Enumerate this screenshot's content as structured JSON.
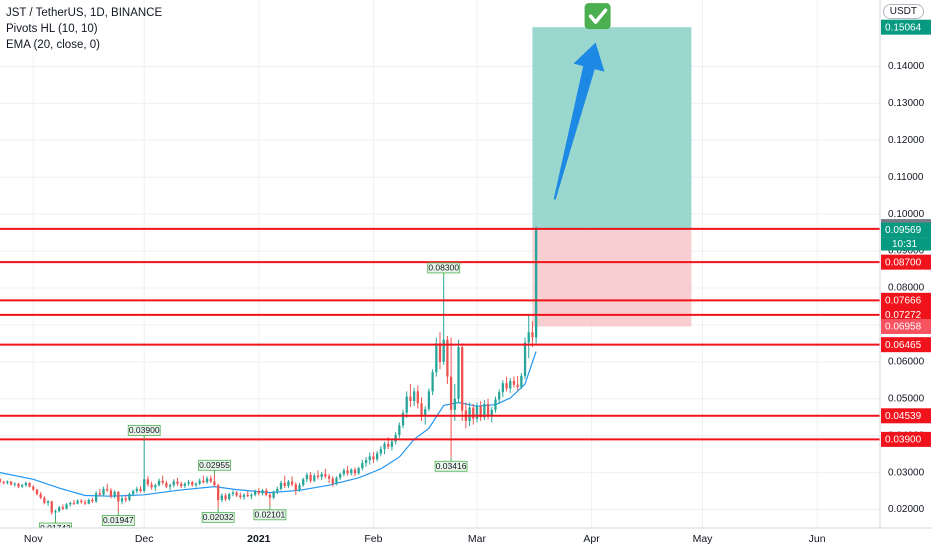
{
  "header": {
    "symbol_line": "JST / TetherUS, 1D, BINANCE",
    "indicator_1": "Pivots HL (10, 10)",
    "indicator_2": "EMA (20, close, 0)"
  },
  "currency_button": "USDT",
  "countdown": "10:31",
  "colors": {
    "up": "#26a69a",
    "down": "#ef5350",
    "ema": "#2196f3",
    "level_line": "#f0131b",
    "target_zone": "#8fd3c9",
    "stop_zone": "#f7c9cb",
    "arrow": "#1e88e5",
    "check": "#4caf50",
    "grid": "#eef0f3"
  },
  "chart_data": {
    "type": "candlestick",
    "x_ticks": [
      "Nov",
      "Dec",
      "2021",
      "Feb",
      "Mar",
      "Apr",
      "May",
      "Jun"
    ],
    "y_ticks": [
      0.02,
      0.03,
      0.04,
      0.05,
      0.06,
      0.07,
      0.08,
      0.09,
      0.1,
      0.11,
      0.12,
      0.13,
      0.14
    ],
    "y_tick_labels": [
      "0.02000",
      "0.03000",
      "0.04000",
      "0.05000",
      "0.06000",
      "0.07000",
      "0.08000",
      "0.09000",
      "0.10000",
      "0.11000",
      "0.12000",
      "0.13000",
      "0.14000"
    ],
    "y_range": [
      0.015,
      0.158
    ],
    "x_range": [
      "2020-10-23",
      "2021-06-18"
    ],
    "grid": true,
    "horizontal_levels": [
      {
        "value": 0.096,
        "label": "0.09600"
      },
      {
        "value": 0.087,
        "label": "0.08700"
      },
      {
        "value": 0.07666,
        "label": "0.07666"
      },
      {
        "value": 0.07272,
        "label": "0.07272"
      },
      {
        "value": 0.06465,
        "label": "0.06465"
      },
      {
        "value": 0.04539,
        "label": "0.04539"
      },
      {
        "value": 0.039,
        "label": "0.03900"
      }
    ],
    "price_badges": [
      {
        "value": 0.15064,
        "label": "0.15064",
        "color": "#089981"
      },
      {
        "value": 0.09664,
        "label": "0.09664",
        "color": "#787b86"
      },
      {
        "value": 0.09569,
        "label": "0.09569",
        "color": "#089981"
      },
      {
        "value": 0.06958,
        "label": "0.06958",
        "color": "#f7525f"
      }
    ],
    "long_position": {
      "entry": 0.09569,
      "target": 0.15064,
      "stop": 0.06958,
      "start": "2021-03-16",
      "end": "2021-04-28"
    },
    "pivots": [
      {
        "date": "2020-11-07",
        "value": 0.01743,
        "label": "0.01743",
        "kind": "low"
      },
      {
        "date": "2020-11-24",
        "value": 0.01947,
        "label": "0.01947",
        "kind": "low"
      },
      {
        "date": "2020-12-01",
        "value": 0.039,
        "label": "0.03900",
        "kind": "high"
      },
      {
        "date": "2020-12-20",
        "value": 0.02955,
        "label": "0.02955",
        "kind": "high"
      },
      {
        "date": "2020-12-21",
        "value": 0.02032,
        "label": "0.02032",
        "kind": "low"
      },
      {
        "date": "2021-01-04",
        "value": 0.02101,
        "label": "0.02101",
        "kind": "low"
      },
      {
        "date": "2021-02-20",
        "value": 0.083,
        "label": "0.08300",
        "kind": "high"
      },
      {
        "date": "2021-02-22",
        "value": 0.03416,
        "label": "0.03416",
        "kind": "low"
      }
    ],
    "candles": [
      [
        "2020-10-23",
        0.0282,
        0.0285,
        0.0272,
        0.0275
      ],
      [
        "2020-10-24",
        0.0275,
        0.0278,
        0.0268,
        0.0272
      ],
      [
        "2020-10-25",
        0.0272,
        0.0279,
        0.0268,
        0.0276
      ],
      [
        "2020-10-26",
        0.0276,
        0.0277,
        0.0265,
        0.0268
      ],
      [
        "2020-10-27",
        0.0268,
        0.0274,
        0.0262,
        0.027
      ],
      [
        "2020-10-28",
        0.027,
        0.0272,
        0.0258,
        0.0262
      ],
      [
        "2020-10-29",
        0.0262,
        0.027,
        0.0258,
        0.0266
      ],
      [
        "2020-10-30",
        0.0266,
        0.0276,
        0.0262,
        0.0272
      ],
      [
        "2020-10-31",
        0.0272,
        0.0274,
        0.026,
        0.0262
      ],
      [
        "2020-11-01",
        0.0262,
        0.0266,
        0.025,
        0.0254
      ],
      [
        "2020-11-02",
        0.0254,
        0.0256,
        0.0238,
        0.0242
      ],
      [
        "2020-11-03",
        0.0242,
        0.0248,
        0.0228,
        0.0232
      ],
      [
        "2020-11-04",
        0.0232,
        0.0236,
        0.0214,
        0.0218
      ],
      [
        "2020-11-05",
        0.0218,
        0.0226,
        0.021,
        0.0222
      ],
      [
        "2020-11-06",
        0.0222,
        0.0224,
        0.0186,
        0.0192
      ],
      [
        "2020-11-07",
        0.0192,
        0.02,
        0.01743,
        0.0196
      ],
      [
        "2020-11-08",
        0.0196,
        0.021,
        0.0192,
        0.0206
      ],
      [
        "2020-11-09",
        0.0206,
        0.0214,
        0.0198,
        0.0202
      ],
      [
        "2020-11-10",
        0.0202,
        0.0218,
        0.02,
        0.0214
      ],
      [
        "2020-11-11",
        0.0214,
        0.0222,
        0.0208,
        0.0218
      ],
      [
        "2020-11-12",
        0.0218,
        0.0226,
        0.0212,
        0.0216
      ],
      [
        "2020-11-13",
        0.0216,
        0.0228,
        0.0214,
        0.0224
      ],
      [
        "2020-11-14",
        0.0224,
        0.0228,
        0.0216,
        0.022
      ],
      [
        "2020-11-15",
        0.022,
        0.0226,
        0.0212,
        0.0216
      ],
      [
        "2020-11-16",
        0.0216,
        0.023,
        0.0214,
        0.0226
      ],
      [
        "2020-11-17",
        0.0226,
        0.0232,
        0.0218,
        0.0222
      ],
      [
        "2020-11-18",
        0.0222,
        0.025,
        0.0218,
        0.0244
      ],
      [
        "2020-11-19",
        0.0244,
        0.0256,
        0.0236,
        0.024
      ],
      [
        "2020-11-20",
        0.024,
        0.0262,
        0.0236,
        0.0256
      ],
      [
        "2020-11-21",
        0.0256,
        0.027,
        0.0248,
        0.0252
      ],
      [
        "2020-11-22",
        0.0252,
        0.0258,
        0.023,
        0.0236
      ],
      [
        "2020-11-23",
        0.0236,
        0.0252,
        0.023,
        0.0248
      ],
      [
        "2020-11-24",
        0.0248,
        0.025,
        0.01947,
        0.0222
      ],
      [
        "2020-11-25",
        0.0222,
        0.0236,
        0.0214,
        0.023
      ],
      [
        "2020-11-26",
        0.023,
        0.024,
        0.022,
        0.0226
      ],
      [
        "2020-11-27",
        0.0226,
        0.0246,
        0.0222,
        0.0242
      ],
      [
        "2020-11-28",
        0.0242,
        0.0254,
        0.0236,
        0.025
      ],
      [
        "2020-11-29",
        0.025,
        0.0262,
        0.0244,
        0.0256
      ],
      [
        "2020-11-30",
        0.0256,
        0.0264,
        0.0246,
        0.025
      ],
      [
        "2020-12-01",
        0.025,
        0.039,
        0.0246,
        0.0282
      ],
      [
        "2020-12-02",
        0.0282,
        0.029,
        0.0262,
        0.0268
      ],
      [
        "2020-12-03",
        0.0268,
        0.0276,
        0.0254,
        0.026
      ],
      [
        "2020-12-04",
        0.026,
        0.027,
        0.025,
        0.0266
      ],
      [
        "2020-12-05",
        0.0266,
        0.0284,
        0.0262,
        0.0278
      ],
      [
        "2020-12-06",
        0.0278,
        0.0292,
        0.0268,
        0.0272
      ],
      [
        "2020-12-07",
        0.0272,
        0.0278,
        0.0258,
        0.0262
      ],
      [
        "2020-12-08",
        0.0262,
        0.027,
        0.0252,
        0.0266
      ],
      [
        "2020-12-09",
        0.0266,
        0.0282,
        0.026,
        0.0276
      ],
      [
        "2020-12-10",
        0.0276,
        0.0286,
        0.0264,
        0.027
      ],
      [
        "2020-12-11",
        0.027,
        0.0276,
        0.0258,
        0.0264
      ],
      [
        "2020-12-12",
        0.0264,
        0.0274,
        0.0258,
        0.027
      ],
      [
        "2020-12-13",
        0.027,
        0.028,
        0.0264,
        0.0274
      ],
      [
        "2020-12-14",
        0.0274,
        0.0278,
        0.0262,
        0.0266
      ],
      [
        "2020-12-15",
        0.0266,
        0.0274,
        0.026,
        0.027
      ],
      [
        "2020-12-16",
        0.027,
        0.0284,
        0.0266,
        0.0278
      ],
      [
        "2020-12-17",
        0.0278,
        0.0292,
        0.027,
        0.0274
      ],
      [
        "2020-12-18",
        0.0274,
        0.029,
        0.027,
        0.0284
      ],
      [
        "2020-12-19",
        0.0284,
        0.0292,
        0.0272,
        0.0276
      ],
      [
        "2020-12-20",
        0.0276,
        0.02955,
        0.0262,
        0.0266
      ],
      [
        "2020-12-21",
        0.0266,
        0.027,
        0.02032,
        0.0226
      ],
      [
        "2020-12-22",
        0.0226,
        0.0244,
        0.022,
        0.0238
      ],
      [
        "2020-12-23",
        0.0238,
        0.0244,
        0.0222,
        0.0228
      ],
      [
        "2020-12-24",
        0.0228,
        0.0246,
        0.0224,
        0.0242
      ],
      [
        "2020-12-25",
        0.0242,
        0.0252,
        0.0236,
        0.0246
      ],
      [
        "2020-12-26",
        0.0246,
        0.025,
        0.0234,
        0.0238
      ],
      [
        "2020-12-27",
        0.0238,
        0.0246,
        0.0228,
        0.0234
      ],
      [
        "2020-12-28",
        0.0234,
        0.0244,
        0.0226,
        0.024
      ],
      [
        "2020-12-29",
        0.024,
        0.025,
        0.0234,
        0.0236
      ],
      [
        "2020-12-30",
        0.0236,
        0.0244,
        0.0228,
        0.024
      ],
      [
        "2020-12-31",
        0.024,
        0.0254,
        0.0236,
        0.025
      ],
      [
        "2021-01-01",
        0.025,
        0.0258,
        0.0238,
        0.0244
      ],
      [
        "2021-01-02",
        0.0244,
        0.0256,
        0.0238,
        0.0252
      ],
      [
        "2021-01-03",
        0.0252,
        0.0258,
        0.0236,
        0.024
      ],
      [
        "2021-01-04",
        0.024,
        0.0244,
        0.02101,
        0.0232
      ],
      [
        "2021-01-05",
        0.0232,
        0.0252,
        0.0228,
        0.0248
      ],
      [
        "2021-01-06",
        0.0248,
        0.0262,
        0.0242,
        0.0256
      ],
      [
        "2021-01-07",
        0.0256,
        0.0278,
        0.0252,
        0.0272
      ],
      [
        "2021-01-08",
        0.0272,
        0.0292,
        0.0258,
        0.0264
      ],
      [
        "2021-01-09",
        0.0264,
        0.028,
        0.0258,
        0.0276
      ],
      [
        "2021-01-10",
        0.0276,
        0.029,
        0.0262,
        0.0268
      ],
      [
        "2021-01-11",
        0.0268,
        0.0274,
        0.024,
        0.0252
      ],
      [
        "2021-01-12",
        0.0252,
        0.0272,
        0.0248,
        0.0266
      ],
      [
        "2021-01-13",
        0.0266,
        0.0286,
        0.0262,
        0.0282
      ],
      [
        "2021-01-14",
        0.0282,
        0.03,
        0.0274,
        0.0294
      ],
      [
        "2021-01-15",
        0.0294,
        0.0302,
        0.0272,
        0.0278
      ],
      [
        "2021-01-16",
        0.0278,
        0.0298,
        0.0274,
        0.0292
      ],
      [
        "2021-01-17",
        0.0292,
        0.0306,
        0.0282,
        0.0288
      ],
      [
        "2021-01-18",
        0.0288,
        0.0302,
        0.028,
        0.0296
      ],
      [
        "2021-01-19",
        0.0296,
        0.031,
        0.0284,
        0.029
      ],
      [
        "2021-01-20",
        0.029,
        0.0296,
        0.0272,
        0.0284
      ],
      [
        "2021-01-21",
        0.0284,
        0.029,
        0.0262,
        0.027
      ],
      [
        "2021-01-22",
        0.027,
        0.029,
        0.0266,
        0.0286
      ],
      [
        "2021-01-23",
        0.0286,
        0.03,
        0.028,
        0.0296
      ],
      [
        "2021-01-24",
        0.0296,
        0.0312,
        0.029,
        0.0306
      ],
      [
        "2021-01-25",
        0.0306,
        0.0318,
        0.0292,
        0.0298
      ],
      [
        "2021-01-26",
        0.0298,
        0.0312,
        0.0292,
        0.0308
      ],
      [
        "2021-01-27",
        0.0308,
        0.0314,
        0.029,
        0.0298
      ],
      [
        "2021-01-28",
        0.0298,
        0.0316,
        0.0294,
        0.0312
      ],
      [
        "2021-01-29",
        0.0312,
        0.0334,
        0.0306,
        0.0326
      ],
      [
        "2021-01-30",
        0.0326,
        0.0342,
        0.0316,
        0.0334
      ],
      [
        "2021-01-31",
        0.0334,
        0.0354,
        0.0322,
        0.0344
      ],
      [
        "2021-02-01",
        0.0344,
        0.0356,
        0.0326,
        0.0336
      ],
      [
        "2021-02-02",
        0.0336,
        0.0358,
        0.033,
        0.0352
      ],
      [
        "2021-02-03",
        0.0352,
        0.0372,
        0.0344,
        0.0364
      ],
      [
        "2021-02-04",
        0.0364,
        0.0384,
        0.035,
        0.0378
      ],
      [
        "2021-02-05",
        0.0378,
        0.0396,
        0.0364,
        0.037
      ],
      [
        "2021-02-06",
        0.037,
        0.039,
        0.036,
        0.0384
      ],
      [
        "2021-02-07",
        0.0384,
        0.041,
        0.0376,
        0.0402
      ],
      [
        "2021-02-08",
        0.0402,
        0.0436,
        0.0394,
        0.0428
      ],
      [
        "2021-02-09",
        0.0428,
        0.047,
        0.042,
        0.0462
      ],
      [
        "2021-02-10",
        0.0462,
        0.052,
        0.0448,
        0.0506
      ],
      [
        "2021-02-11",
        0.0506,
        0.054,
        0.0478,
        0.0494
      ],
      [
        "2021-02-12",
        0.0494,
        0.053,
        0.048,
        0.052
      ],
      [
        "2021-02-13",
        0.052,
        0.0536,
        0.0474,
        0.0488
      ],
      [
        "2021-02-14",
        0.0488,
        0.0504,
        0.044,
        0.0452
      ],
      [
        "2021-02-15",
        0.0452,
        0.048,
        0.043,
        0.0472
      ],
      [
        "2021-02-16",
        0.0472,
        0.0528,
        0.0466,
        0.052
      ],
      [
        "2021-02-17",
        0.052,
        0.058,
        0.051,
        0.0572
      ],
      [
        "2021-02-18",
        0.0572,
        0.0666,
        0.056,
        0.065
      ],
      [
        "2021-02-19",
        0.065,
        0.068,
        0.058,
        0.06
      ],
      [
        "2021-02-20",
        0.06,
        0.083,
        0.0592,
        0.066
      ],
      [
        "2021-02-21",
        0.066,
        0.067,
        0.054,
        0.056
      ],
      [
        "2021-02-22",
        0.056,
        0.0666,
        0.03416,
        0.047
      ],
      [
        "2021-02-23",
        0.047,
        0.054,
        0.044,
        0.05
      ],
      [
        "2021-02-24",
        0.05,
        0.066,
        0.0488,
        0.064
      ],
      [
        "2021-02-25",
        0.064,
        0.065,
        0.044,
        0.0468
      ],
      [
        "2021-02-26",
        0.0468,
        0.049,
        0.042,
        0.044
      ],
      [
        "2021-02-27",
        0.044,
        0.049,
        0.0426,
        0.0476
      ],
      [
        "2021-02-28",
        0.0476,
        0.0486,
        0.043,
        0.0446
      ],
      [
        "2021-03-01",
        0.0446,
        0.049,
        0.0436,
        0.048
      ],
      [
        "2021-03-02",
        0.048,
        0.0494,
        0.044,
        0.045
      ],
      [
        "2021-03-03",
        0.045,
        0.0496,
        0.0442,
        0.0486
      ],
      [
        "2021-03-04",
        0.0486,
        0.05,
        0.0444,
        0.0456
      ],
      [
        "2021-03-05",
        0.0456,
        0.0478,
        0.0436,
        0.047
      ],
      [
        "2021-03-06",
        0.047,
        0.0506,
        0.0462,
        0.0498
      ],
      [
        "2021-03-07",
        0.0498,
        0.0526,
        0.0486,
        0.0518
      ],
      [
        "2021-03-08",
        0.0518,
        0.055,
        0.0504,
        0.0542
      ],
      [
        "2021-03-09",
        0.0542,
        0.056,
        0.052,
        0.0528
      ],
      [
        "2021-03-10",
        0.0528,
        0.0556,
        0.0516,
        0.0548
      ],
      [
        "2021-03-11",
        0.0548,
        0.056,
        0.053,
        0.0538
      ],
      [
        "2021-03-12",
        0.0538,
        0.0562,
        0.0522,
        0.0532
      ],
      [
        "2021-03-13",
        0.0532,
        0.057,
        0.0526,
        0.0562
      ],
      [
        "2021-03-14",
        0.0562,
        0.0666,
        0.0554,
        0.0652
      ],
      [
        "2021-03-15",
        0.0652,
        0.073,
        0.061,
        0.068
      ],
      [
        "2021-03-16",
        0.068,
        0.071,
        0.064,
        0.0666
      ],
      [
        "2021-03-17",
        0.0666,
        0.09664,
        0.065,
        0.09569
      ]
    ],
    "ema": [
      [
        "2020-10-23",
        0.03
      ],
      [
        "2020-11-01",
        0.0282
      ],
      [
        "2020-11-08",
        0.0258
      ],
      [
        "2020-11-15",
        0.0238
      ],
      [
        "2020-11-22",
        0.0236
      ],
      [
        "2020-12-01",
        0.024
      ],
      [
        "2020-12-10",
        0.0252
      ],
      [
        "2020-12-20",
        0.0262
      ],
      [
        "2020-12-26",
        0.0254
      ],
      [
        "2021-01-04",
        0.0246
      ],
      [
        "2021-01-12",
        0.0252
      ],
      [
        "2021-01-20",
        0.0266
      ],
      [
        "2021-01-28",
        0.0286
      ],
      [
        "2021-02-03",
        0.031
      ],
      [
        "2021-02-08",
        0.0342
      ],
      [
        "2021-02-12",
        0.039
      ],
      [
        "2021-02-16",
        0.042
      ],
      [
        "2021-02-20",
        0.0482
      ],
      [
        "2021-02-24",
        0.049
      ],
      [
        "2021-03-01",
        0.048
      ],
      [
        "2021-03-06",
        0.0484
      ],
      [
        "2021-03-10",
        0.0502
      ],
      [
        "2021-03-14",
        0.054
      ],
      [
        "2021-03-17",
        0.0628
      ]
    ]
  }
}
